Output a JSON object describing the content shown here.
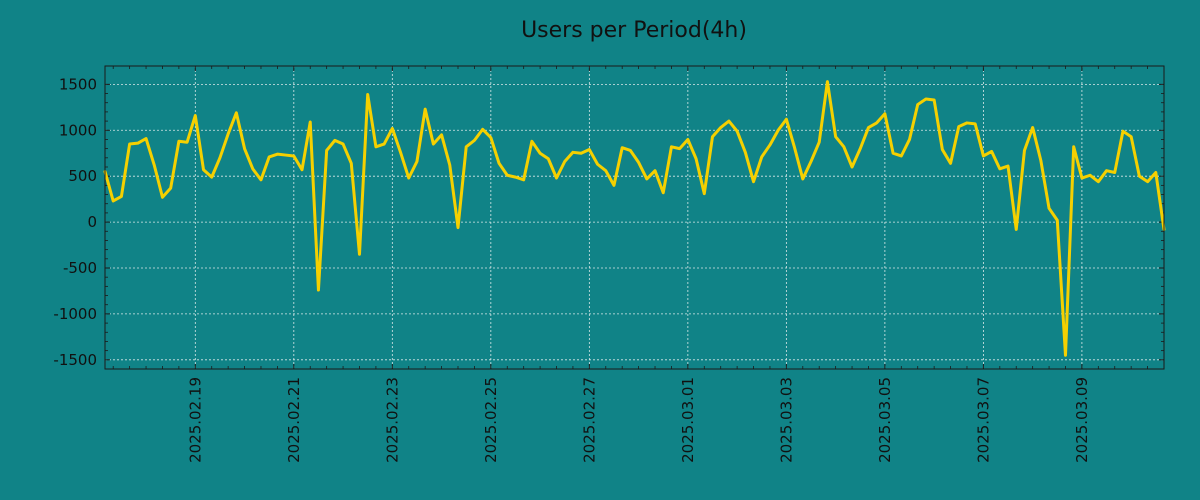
{
  "colors": {
    "background": "#108387",
    "plot_background": "#108387",
    "line": "#F5D000",
    "axis": "#1a1a1a",
    "grid": "#d9e8e8",
    "text": "#111111"
  },
  "chart_data": {
    "type": "line",
    "title": "Users per Period(4h)",
    "xlabel": "",
    "ylabel": "",
    "ylim": [
      -1600,
      1700
    ],
    "xlim": [
      0,
      129
    ],
    "grid": true,
    "y_ticks": [
      1500,
      1000,
      500,
      0,
      -500,
      -1000,
      -1500
    ],
    "y_tick_labels": [
      "1500",
      "1000",
      "500",
      "0",
      "-500",
      "-1000",
      "-1500"
    ],
    "x_ticks": [
      11,
      23,
      35,
      47,
      59,
      71,
      83,
      95,
      107,
      119
    ],
    "x_tick_labels": [
      "2025.02.19",
      "2025.02.21",
      "2025.02.23",
      "2025.02.25",
      "2025.02.27",
      "2025.03.01",
      "2025.03.03",
      "2025.03.05",
      "2025.03.07",
      "2025.03.09"
    ],
    "series": [
      {
        "name": "Users",
        "values": [
          550,
          230,
          280,
          850,
          860,
          910,
          620,
          270,
          370,
          880,
          870,
          1160,
          570,
          490,
          700,
          960,
          1190,
          800,
          580,
          460,
          710,
          740,
          730,
          720,
          570,
          1090,
          -740,
          780,
          890,
          850,
          640,
          -350,
          1390,
          820,
          850,
          1020,
          760,
          480,
          660,
          1230,
          850,
          950,
          620,
          -60,
          820,
          890,
          1010,
          920,
          640,
          510,
          490,
          460,
          880,
          750,
          690,
          480,
          660,
          760,
          750,
          790,
          630,
          560,
          400,
          810,
          780,
          650,
          470,
          560,
          320,
          820,
          800,
          900,
          690,
          310,
          930,
          1030,
          1100,
          990,
          760,
          440,
          710,
          840,
          1000,
          1120,
          810,
          470,
          660,
          870,
          1530,
          930,
          820,
          600,
          800,
          1030,
          1080,
          1180,
          750,
          720,
          900,
          1280,
          1340,
          1330,
          790,
          640,
          1040,
          1080,
          1070,
          720,
          770,
          580,
          610,
          -80,
          780,
          1030,
          670,
          150,
          20,
          -1450,
          820,
          480,
          510,
          440,
          560,
          540,
          990,
          930,
          500,
          440,
          540,
          -80
        ]
      }
    ]
  }
}
